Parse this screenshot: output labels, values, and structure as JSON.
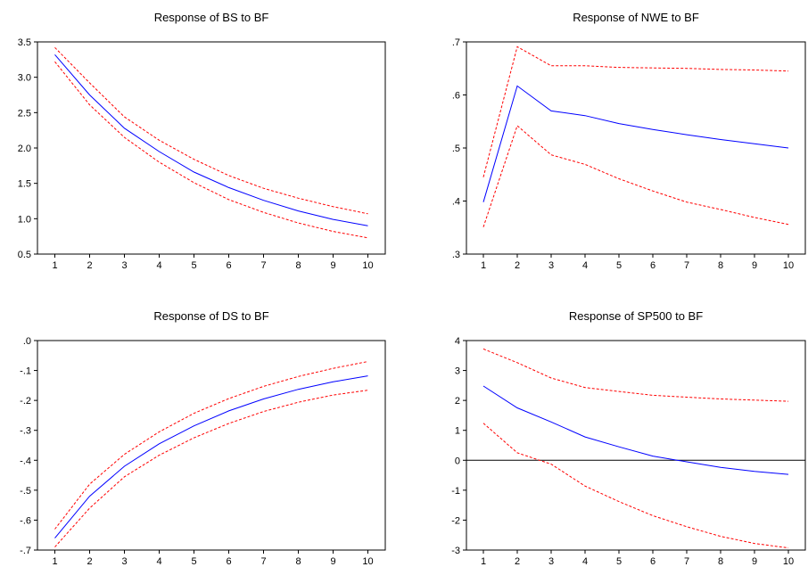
{
  "chart_data": [
    {
      "type": "line",
      "title": "Response of BS to BF",
      "categories": [
        "1",
        "2",
        "3",
        "4",
        "5",
        "6",
        "7",
        "8",
        "9",
        "10"
      ],
      "ylim": [
        0.5,
        3.5
      ],
      "yticks": [
        "0.5",
        "1.0",
        "1.5",
        "2.0",
        "2.5",
        "3.0",
        "3.5"
      ],
      "ytick_values": [
        0.5,
        1.0,
        1.5,
        2.0,
        2.5,
        3.0,
        3.5
      ],
      "zero_line": false,
      "series": [
        {
          "role": "response",
          "color": "#0000ff",
          "dashed": false,
          "values": [
            3.32,
            2.75,
            2.28,
            1.95,
            1.66,
            1.44,
            1.26,
            1.11,
            0.99,
            0.9
          ]
        },
        {
          "role": "upper-band",
          "color": "#ff0000",
          "dashed": true,
          "values": [
            3.42,
            2.92,
            2.44,
            2.11,
            1.84,
            1.61,
            1.43,
            1.29,
            1.17,
            1.07
          ]
        },
        {
          "role": "lower-band",
          "color": "#ff0000",
          "dashed": true,
          "values": [
            3.22,
            2.61,
            2.15,
            1.8,
            1.51,
            1.27,
            1.09,
            0.94,
            0.82,
            0.73
          ]
        }
      ]
    },
    {
      "type": "line",
      "title": "Response of NWE to BF",
      "categories": [
        "1",
        "2",
        "3",
        "4",
        "5",
        "6",
        "7",
        "8",
        "9",
        "10"
      ],
      "ylim": [
        0.3,
        0.7
      ],
      "yticks": [
        ".3",
        ".4",
        ".5",
        ".6",
        ".7"
      ],
      "ytick_values": [
        0.3,
        0.4,
        0.5,
        0.6,
        0.7
      ],
      "zero_line": false,
      "series": [
        {
          "role": "response",
          "color": "#0000ff",
          "dashed": false,
          "values": [
            0.398,
            0.617,
            0.57,
            0.561,
            0.546,
            0.535,
            0.525,
            0.516,
            0.508,
            0.5
          ]
        },
        {
          "role": "upper-band",
          "color": "#ff0000",
          "dashed": true,
          "values": [
            0.445,
            0.691,
            0.655,
            0.655,
            0.652,
            0.651,
            0.65,
            0.648,
            0.647,
            0.645
          ]
        },
        {
          "role": "lower-band",
          "color": "#ff0000",
          "dashed": true,
          "values": [
            0.351,
            0.542,
            0.487,
            0.469,
            0.442,
            0.419,
            0.398,
            0.384,
            0.369,
            0.356
          ]
        }
      ]
    },
    {
      "type": "line",
      "title": "Response of DS to BF",
      "categories": [
        "1",
        "2",
        "3",
        "4",
        "5",
        "6",
        "7",
        "8",
        "9",
        "10"
      ],
      "ylim": [
        -0.7,
        0.0
      ],
      "yticks": [
        ".0",
        "-.1",
        "-.2",
        "-.3",
        "-.4",
        "-.5",
        "-.6",
        "-.7"
      ],
      "ytick_values": [
        0.0,
        -0.1,
        -0.2,
        -0.3,
        -0.4,
        -0.5,
        -0.6,
        -0.7
      ],
      "zero_line": false,
      "series": [
        {
          "role": "response",
          "color": "#0000ff",
          "dashed": false,
          "values": [
            -0.66,
            -0.52,
            -0.42,
            -0.345,
            -0.285,
            -0.235,
            -0.195,
            -0.163,
            -0.138,
            -0.118
          ]
        },
        {
          "role": "upper-band",
          "color": "#ff0000",
          "dashed": true,
          "values": [
            -0.63,
            -0.48,
            -0.38,
            -0.305,
            -0.243,
            -0.194,
            -0.153,
            -0.12,
            -0.093,
            -0.07
          ]
        },
        {
          "role": "lower-band",
          "color": "#ff0000",
          "dashed": true,
          "values": [
            -0.69,
            -0.56,
            -0.455,
            -0.383,
            -0.325,
            -0.277,
            -0.237,
            -0.206,
            -0.182,
            -0.166
          ]
        }
      ]
    },
    {
      "type": "line",
      "title": "Response of SP500 to BF",
      "categories": [
        "1",
        "2",
        "3",
        "4",
        "5",
        "6",
        "7",
        "8",
        "9",
        "10"
      ],
      "ylim": [
        -3,
        4
      ],
      "yticks": [
        "4",
        "3",
        "2",
        "1",
        "0",
        "-1",
        "-2",
        "-3"
      ],
      "ytick_values": [
        4,
        3,
        2,
        1,
        0,
        -1,
        -2,
        -3
      ],
      "zero_line": true,
      "series": [
        {
          "role": "response",
          "color": "#0000ff",
          "dashed": false,
          "values": [
            2.48,
            1.75,
            1.28,
            0.78,
            0.45,
            0.14,
            -0.05,
            -0.24,
            -0.37,
            -0.47
          ]
        },
        {
          "role": "upper-band",
          "color": "#ff0000",
          "dashed": true,
          "values": [
            3.72,
            3.26,
            2.75,
            2.43,
            2.3,
            2.17,
            2.11,
            2.05,
            2.01,
            1.97
          ]
        },
        {
          "role": "lower-band",
          "color": "#ff0000",
          "dashed": true,
          "values": [
            1.24,
            0.25,
            -0.13,
            -0.86,
            -1.38,
            -1.85,
            -2.22,
            -2.54,
            -2.78,
            -2.93
          ]
        }
      ]
    }
  ]
}
